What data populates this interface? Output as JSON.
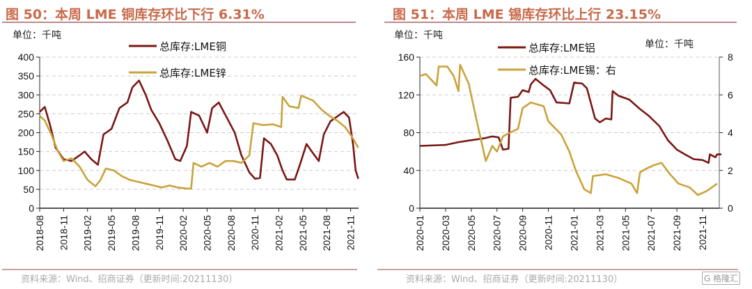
{
  "charts": [
    {
      "title": "图 50：本周 LME 铜库存环比下行 6.31%",
      "source": "资料来源：Wind、招商证券（更新时间:20211130）"
    },
    {
      "title": "图 51：本周 LME 锡库存环比上行 23.15%",
      "source": "资料来源：Wind、招商证券（更新时间:20211130）"
    }
  ],
  "watermark": "格隆汇",
  "chart_data": [
    {
      "type": "line",
      "unit_label": "单位：千吨",
      "ylim": [
        0,
        400
      ],
      "yticks": [
        0,
        50,
        100,
        150,
        200,
        250,
        300,
        350,
        400
      ],
      "xticks": [
        "2018-08",
        "2018-11",
        "2019-02",
        "2019-05",
        "2019-08",
        "2019-11",
        "2020-02",
        "2020-05",
        "2020-08",
        "2020-11",
        "2021-02",
        "2021-05",
        "2021-08",
        "2021-11"
      ],
      "grid": "horizontal dashed",
      "legend": "top-center",
      "series": [
        {
          "name": "总库存:LME铜",
          "color": "#7a1515",
          "points": [
            [
              "2018-08-01",
              255
            ],
            [
              "2018-08-20",
              268
            ],
            [
              "2018-09-10",
              220
            ],
            [
              "2018-10-01",
              160
            ],
            [
              "2018-11-01",
              130
            ],
            [
              "2018-12-01",
              125
            ],
            [
              "2019-01-01",
              140
            ],
            [
              "2019-01-20",
              150
            ],
            [
              "2019-02-15",
              130
            ],
            [
              "2019-03-10",
              115
            ],
            [
              "2019-04-01",
              195
            ],
            [
              "2019-05-01",
              210
            ],
            [
              "2019-06-01",
              265
            ],
            [
              "2019-07-01",
              280
            ],
            [
              "2019-07-20",
              320
            ],
            [
              "2019-08-15",
              338
            ],
            [
              "2019-09-10",
              300
            ],
            [
              "2019-10-01",
              260
            ],
            [
              "2019-11-01",
              225
            ],
            [
              "2019-12-01",
              180
            ],
            [
              "2020-01-01",
              130
            ],
            [
              "2020-01-20",
              125
            ],
            [
              "2020-02-15",
              165
            ],
            [
              "2020-03-01",
              255
            ],
            [
              "2020-04-01",
              245
            ],
            [
              "2020-05-01",
              200
            ],
            [
              "2020-05-20",
              265
            ],
            [
              "2020-06-15",
              280
            ],
            [
              "2020-07-15",
              240
            ],
            [
              "2020-08-15",
              200
            ],
            [
              "2020-09-10",
              140
            ],
            [
              "2020-10-10",
              95
            ],
            [
              "2020-11-01",
              78
            ],
            [
              "2020-11-20",
              80
            ],
            [
              "2020-12-05",
              185
            ],
            [
              "2021-01-01",
              170
            ],
            [
              "2021-01-25",
              140
            ],
            [
              "2021-02-15",
              100
            ],
            [
              "2021-03-01",
              76
            ],
            [
              "2021-04-01",
              76
            ],
            [
              "2021-04-20",
              115
            ],
            [
              "2021-05-15",
              170
            ],
            [
              "2021-06-10",
              145
            ],
            [
              "2021-07-01",
              125
            ],
            [
              "2021-07-20",
              195
            ],
            [
              "2021-08-15",
              230
            ],
            [
              "2021-09-15",
              245
            ],
            [
              "2021-10-05",
              255
            ],
            [
              "2021-10-25",
              240
            ],
            [
              "2021-11-10",
              170
            ],
            [
              "2021-11-20",
              100
            ],
            [
              "2021-11-30",
              78
            ]
          ]
        },
        {
          "name": "总库存:LME锌",
          "color": "#c9a23a",
          "points": [
            [
              "2018-08-01",
              245
            ],
            [
              "2018-08-20",
              232
            ],
            [
              "2018-09-15",
              195
            ],
            [
              "2018-10-10",
              150
            ],
            [
              "2018-11-01",
              125
            ],
            [
              "2018-12-01",
              132
            ],
            [
              "2019-01-01",
              110
            ],
            [
              "2019-02-01",
              75
            ],
            [
              "2019-03-01",
              58
            ],
            [
              "2019-03-20",
              75
            ],
            [
              "2019-04-10",
              105
            ],
            [
              "2019-05-10",
              100
            ],
            [
              "2019-06-10",
              85
            ],
            [
              "2019-07-10",
              75
            ],
            [
              "2019-08-10",
              70
            ],
            [
              "2019-09-10",
              65
            ],
            [
              "2019-10-10",
              60
            ],
            [
              "2019-11-10",
              55
            ],
            [
              "2019-12-10",
              60
            ],
            [
              "2020-01-10",
              55
            ],
            [
              "2020-02-15",
              52
            ],
            [
              "2020-03-01",
              52
            ],
            [
              "2020-03-10",
              120
            ],
            [
              "2020-04-10",
              110
            ],
            [
              "2020-05-10",
              120
            ],
            [
              "2020-06-10",
              110
            ],
            [
              "2020-07-10",
              125
            ],
            [
              "2020-08-10",
              125
            ],
            [
              "2020-09-10",
              120
            ],
            [
              "2020-10-10",
              140
            ],
            [
              "2020-10-25",
              225
            ],
            [
              "2020-12-01",
              220
            ],
            [
              "2021-01-10",
              222
            ],
            [
              "2021-02-10",
              215
            ],
            [
              "2021-02-15",
              295
            ],
            [
              "2021-03-10",
              270
            ],
            [
              "2021-04-15",
              265
            ],
            [
              "2021-04-25",
              298
            ],
            [
              "2021-06-10",
              285
            ],
            [
              "2021-07-10",
              262
            ],
            [
              "2021-08-10",
              245
            ],
            [
              "2021-09-10",
              232
            ],
            [
              "2021-10-10",
              215
            ],
            [
              "2021-11-05",
              190
            ],
            [
              "2021-11-30",
              160
            ]
          ]
        }
      ]
    },
    {
      "type": "line",
      "unit_label": "单位：千吨",
      "unit_label_right": "单位：千吨",
      "ylim": [
        0,
        160
      ],
      "yticks": [
        0,
        40,
        80,
        120,
        160
      ],
      "ylim_right": [
        0,
        8
      ],
      "yticks_right": [
        0,
        2,
        4,
        6,
        8
      ],
      "xticks": [
        "2020-01",
        "2020-03",
        "2020-05",
        "2020-07",
        "2020-09",
        "2020-11",
        "2021-01",
        "2021-03",
        "2021-05",
        "2021-07",
        "2021-09",
        "2021-11"
      ],
      "grid": "horizontal dashed",
      "legend": "top-center",
      "series": [
        {
          "name": "总库存:LME铝",
          "axis": "left",
          "color": "#7a1515",
          "points": [
            [
              "2020-01-01",
              66
            ],
            [
              "2020-03-01",
              67
            ],
            [
              "2020-04-01",
              70
            ],
            [
              "2020-05-01",
              72
            ],
            [
              "2020-06-01",
              74
            ],
            [
              "2020-06-20",
              76
            ],
            [
              "2020-07-05",
              75
            ],
            [
              "2020-07-15",
              62
            ],
            [
              "2020-07-28",
              63
            ],
            [
              "2020-08-03",
              117
            ],
            [
              "2020-08-20",
              118
            ],
            [
              "2020-09-01",
              125
            ],
            [
              "2020-09-15",
              123
            ],
            [
              "2020-09-20",
              131
            ],
            [
              "2020-10-01",
              137
            ],
            [
              "2020-10-20",
              130
            ],
            [
              "2020-11-05",
              125
            ],
            [
              "2020-11-20",
              112
            ],
            [
              "2020-12-20",
              111
            ],
            [
              "2021-01-01",
              133
            ],
            [
              "2021-01-20",
              132
            ],
            [
              "2021-02-01",
              127
            ],
            [
              "2021-02-20",
              95
            ],
            [
              "2021-03-01",
              91
            ],
            [
              "2021-03-15",
              95
            ],
            [
              "2021-03-28",
              94
            ],
            [
              "2021-04-01",
              124
            ],
            [
              "2021-04-15",
              119
            ],
            [
              "2021-05-10",
              115
            ],
            [
              "2021-06-05",
              105
            ],
            [
              "2021-06-25",
              98
            ],
            [
              "2021-07-20",
              87
            ],
            [
              "2021-08-10",
              72
            ],
            [
              "2021-09-01",
              62
            ],
            [
              "2021-09-20",
              57
            ],
            [
              "2021-10-10",
              52
            ],
            [
              "2021-11-01",
              51
            ],
            [
              "2021-11-15",
              48
            ],
            [
              "2021-11-18",
              57
            ],
            [
              "2021-12-01",
              54
            ],
            [
              "2021-12-05",
              57
            ],
            [
              "2021-12-15",
              57
            ]
          ]
        },
        {
          "name": "总库存:LME锡：右",
          "axis": "right",
          "color": "#c9a23a",
          "points": [
            [
              "2020-01-01",
              7.0
            ],
            [
              "2020-01-15",
              7.1
            ],
            [
              "2020-02-10",
              6.5
            ],
            [
              "2020-02-15",
              7.5
            ],
            [
              "2020-03-05",
              7.5
            ],
            [
              "2020-03-20",
              7.0
            ],
            [
              "2020-04-01",
              6.2
            ],
            [
              "2020-04-05",
              7.6
            ],
            [
              "2020-04-25",
              6.6
            ],
            [
              "2020-05-15",
              4.5
            ],
            [
              "2020-06-05",
              2.5
            ],
            [
              "2020-06-20",
              3.3
            ],
            [
              "2020-07-01",
              3.0
            ],
            [
              "2020-07-15",
              3.8
            ],
            [
              "2020-08-01",
              4.0
            ],
            [
              "2020-08-20",
              4.2
            ],
            [
              "2020-09-01",
              5.3
            ],
            [
              "2020-09-20",
              5.6
            ],
            [
              "2020-10-20",
              5.4
            ],
            [
              "2020-11-01",
              4.6
            ],
            [
              "2020-12-01",
              3.9
            ],
            [
              "2020-12-20",
              3.0
            ],
            [
              "2021-01-05",
              2.0
            ],
            [
              "2021-01-25",
              1.0
            ],
            [
              "2021-02-10",
              0.8
            ],
            [
              "2021-02-15",
              1.7
            ],
            [
              "2021-03-15",
              1.8
            ],
            [
              "2021-04-15",
              1.6
            ],
            [
              "2021-05-15",
              1.3
            ],
            [
              "2021-05-28",
              0.8
            ],
            [
              "2021-06-05",
              1.9
            ],
            [
              "2021-06-20",
              2.1
            ],
            [
              "2021-07-10",
              2.3
            ],
            [
              "2021-07-25",
              2.4
            ],
            [
              "2021-08-15",
              1.8
            ],
            [
              "2021-09-05",
              1.3
            ],
            [
              "2021-10-01",
              1.1
            ],
            [
              "2021-10-20",
              0.7
            ],
            [
              "2021-11-10",
              0.9
            ],
            [
              "2021-12-05",
              1.3
            ]
          ]
        }
      ]
    }
  ]
}
